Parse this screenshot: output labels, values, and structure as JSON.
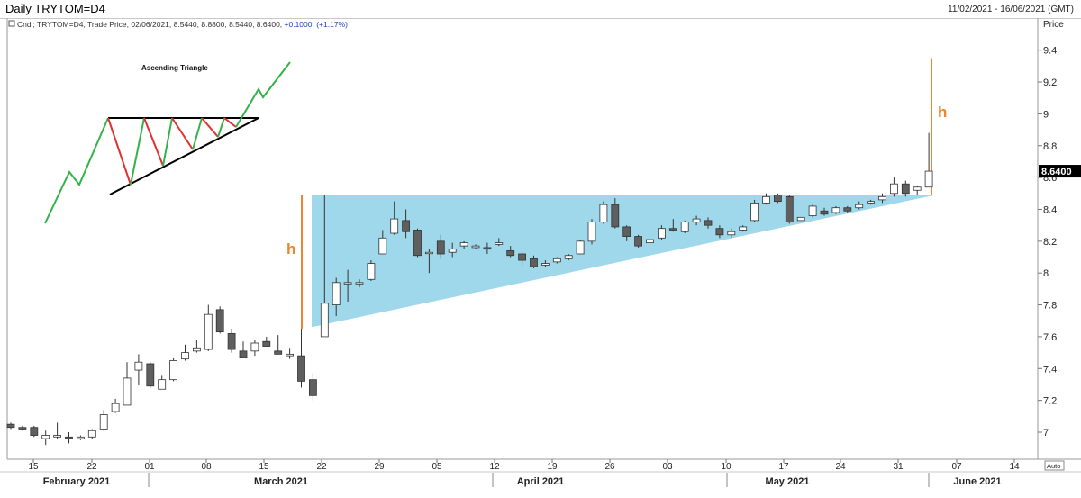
{
  "header": {
    "title": "Daily TRYTOM=D4",
    "date_range": "11/02/2021 - 16/06/2021 (GMT)"
  },
  "info_line": {
    "prefix": "Cndl; TRYTOM=D4, Trade Price, 02/06/2021, 8.5440, 8.8800, 8.5440, 8.6400,",
    "change": "+0.1000, (+1.17%)",
    "change_color": "#1f3fbf"
  },
  "price_axis": {
    "title": "Price",
    "last_price": "8.6400",
    "auto_button": "Auto"
  },
  "annotations": {
    "pattern_label": "Ascending Triangle",
    "height_label": "h",
    "accent_color": "#f0842c",
    "triangle_fill": "#9fd8ea",
    "up_color": "#ffffff",
    "down_color": "#5f5f5f"
  },
  "chart_data": {
    "type": "candlestick",
    "title": "Daily TRYTOM=D4",
    "ylabel": "Price",
    "ylim": [
      6.85,
      9.65
    ],
    "yticks": [
      "7",
      "7.2",
      "7.4",
      "7.6",
      "7.8",
      "8",
      "8.2",
      "8.4",
      "8.6",
      "8.8",
      "9",
      "9.2",
      "9.4"
    ],
    "x_day_labels": [
      "15",
      "22",
      "01",
      "08",
      "15",
      "22",
      "29",
      "05",
      "12",
      "19",
      "26",
      "03",
      "10",
      "17",
      "24",
      "31",
      "07",
      "14"
    ],
    "x_month_labels": [
      "February 2021",
      "March 2021",
      "April 2021",
      "May 2021",
      "June 2021"
    ],
    "candles": [
      {
        "o": 7.05,
        "h": 7.06,
        "l": 7.02,
        "c": 7.03
      },
      {
        "o": 7.03,
        "h": 7.04,
        "l": 7.01,
        "c": 7.02
      },
      {
        "o": 7.03,
        "h": 7.04,
        "l": 6.97,
        "c": 6.98
      },
      {
        "o": 6.96,
        "h": 7.01,
        "l": 6.92,
        "c": 6.98
      },
      {
        "o": 6.97,
        "h": 7.06,
        "l": 6.96,
        "c": 6.98
      },
      {
        "o": 6.97,
        "h": 7.0,
        "l": 6.93,
        "c": 6.96
      },
      {
        "o": 6.96,
        "h": 6.98,
        "l": 6.95,
        "c": 6.97
      },
      {
        "o": 6.97,
        "h": 7.02,
        "l": 6.96,
        "c": 7.01
      },
      {
        "o": 7.02,
        "h": 7.14,
        "l": 7.01,
        "c": 7.11
      },
      {
        "o": 7.13,
        "h": 7.21,
        "l": 7.12,
        "c": 7.18
      },
      {
        "o": 7.17,
        "h": 7.44,
        "l": 7.17,
        "c": 7.34
      },
      {
        "o": 7.39,
        "h": 7.49,
        "l": 7.3,
        "c": 7.44
      },
      {
        "o": 7.43,
        "h": 7.44,
        "l": 7.28,
        "c": 7.29
      },
      {
        "o": 7.27,
        "h": 7.36,
        "l": 7.27,
        "c": 7.33
      },
      {
        "o": 7.33,
        "h": 7.47,
        "l": 7.32,
        "c": 7.45
      },
      {
        "o": 7.46,
        "h": 7.55,
        "l": 7.45,
        "c": 7.5
      },
      {
        "o": 7.51,
        "h": 7.58,
        "l": 7.5,
        "c": 7.53
      },
      {
        "o": 7.52,
        "h": 7.8,
        "l": 7.51,
        "c": 7.74
      },
      {
        "o": 7.77,
        "h": 7.79,
        "l": 7.62,
        "c": 7.63
      },
      {
        "o": 7.62,
        "h": 7.65,
        "l": 7.5,
        "c": 7.52
      },
      {
        "o": 7.51,
        "h": 7.57,
        "l": 7.47,
        "c": 7.47
      },
      {
        "o": 7.51,
        "h": 7.58,
        "l": 7.48,
        "c": 7.56
      },
      {
        "o": 7.57,
        "h": 7.6,
        "l": 7.54,
        "c": 7.54
      },
      {
        "o": 7.51,
        "h": 7.61,
        "l": 7.5,
        "c": 7.49
      },
      {
        "o": 7.48,
        "h": 7.53,
        "l": 7.46,
        "c": 7.49
      },
      {
        "o": 7.48,
        "h": 7.65,
        "l": 7.28,
        "c": 7.32
      },
      {
        "o": 7.33,
        "h": 7.37,
        "l": 7.2,
        "c": 7.23
      },
      {
        "o": 7.6,
        "h": 8.49,
        "l": 7.6,
        "c": 7.81
      },
      {
        "o": 7.8,
        "h": 7.97,
        "l": 7.73,
        "c": 7.94
      },
      {
        "o": 7.94,
        "h": 8.02,
        "l": 7.82,
        "c": 7.94
      },
      {
        "o": 7.94,
        "h": 7.96,
        "l": 7.91,
        "c": 7.94
      },
      {
        "o": 7.96,
        "h": 8.08,
        "l": 7.95,
        "c": 8.06
      },
      {
        "o": 8.12,
        "h": 8.27,
        "l": 8.12,
        "c": 8.22
      },
      {
        "o": 8.25,
        "h": 8.45,
        "l": 8.24,
        "c": 8.34
      },
      {
        "o": 8.33,
        "h": 8.4,
        "l": 8.22,
        "c": 8.26
      },
      {
        "o": 8.27,
        "h": 8.28,
        "l": 8.1,
        "c": 8.11
      },
      {
        "o": 8.13,
        "h": 8.15,
        "l": 8.0,
        "c": 8.13
      },
      {
        "o": 8.2,
        "h": 8.24,
        "l": 8.09,
        "c": 8.12
      },
      {
        "o": 8.13,
        "h": 8.19,
        "l": 8.1,
        "c": 8.15
      },
      {
        "o": 8.17,
        "h": 8.2,
        "l": 8.15,
        "c": 8.19
      },
      {
        "o": 8.16,
        "h": 8.18,
        "l": 8.15,
        "c": 8.17
      },
      {
        "o": 8.16,
        "h": 8.19,
        "l": 8.12,
        "c": 8.15
      },
      {
        "o": 8.18,
        "h": 8.22,
        "l": 8.17,
        "c": 8.19
      },
      {
        "o": 8.14,
        "h": 8.17,
        "l": 8.1,
        "c": 8.11
      },
      {
        "o": 8.12,
        "h": 8.13,
        "l": 8.05,
        "c": 8.08
      },
      {
        "o": 8.09,
        "h": 8.11,
        "l": 8.03,
        "c": 8.04
      },
      {
        "o": 8.05,
        "h": 8.08,
        "l": 8.04,
        "c": 8.06
      },
      {
        "o": 8.07,
        "h": 8.1,
        "l": 8.06,
        "c": 8.09
      },
      {
        "o": 8.09,
        "h": 8.12,
        "l": 8.08,
        "c": 8.11
      },
      {
        "o": 8.12,
        "h": 8.21,
        "l": 8.12,
        "c": 8.2
      },
      {
        "o": 8.2,
        "h": 8.34,
        "l": 8.18,
        "c": 8.32
      },
      {
        "o": 8.32,
        "h": 8.45,
        "l": 8.31,
        "c": 8.43
      },
      {
        "o": 8.43,
        "h": 8.47,
        "l": 8.28,
        "c": 8.29
      },
      {
        "o": 8.29,
        "h": 8.3,
        "l": 8.2,
        "c": 8.23
      },
      {
        "o": 8.23,
        "h": 8.24,
        "l": 8.16,
        "c": 8.17
      },
      {
        "o": 8.19,
        "h": 8.25,
        "l": 8.13,
        "c": 8.21
      },
      {
        "o": 8.22,
        "h": 8.3,
        "l": 8.21,
        "c": 8.28
      },
      {
        "o": 8.28,
        "h": 8.34,
        "l": 8.26,
        "c": 8.27
      },
      {
        "o": 8.26,
        "h": 8.33,
        "l": 8.25,
        "c": 8.32
      },
      {
        "o": 8.32,
        "h": 8.36,
        "l": 8.3,
        "c": 8.34
      },
      {
        "o": 8.33,
        "h": 8.35,
        "l": 8.28,
        "c": 8.3
      },
      {
        "o": 8.28,
        "h": 8.3,
        "l": 8.22,
        "c": 8.24
      },
      {
        "o": 8.24,
        "h": 8.28,
        "l": 8.22,
        "c": 8.26
      },
      {
        "o": 8.27,
        "h": 8.3,
        "l": 8.26,
        "c": 8.29
      },
      {
        "o": 8.33,
        "h": 8.46,
        "l": 8.32,
        "c": 8.44
      },
      {
        "o": 8.44,
        "h": 8.5,
        "l": 8.43,
        "c": 8.48
      },
      {
        "o": 8.49,
        "h": 8.5,
        "l": 8.44,
        "c": 8.45
      },
      {
        "o": 8.48,
        "h": 8.49,
        "l": 8.31,
        "c": 8.32
      },
      {
        "o": 8.33,
        "h": 8.35,
        "l": 8.33,
        "c": 8.35
      },
      {
        "o": 8.36,
        "h": 8.43,
        "l": 8.35,
        "c": 8.42
      },
      {
        "o": 8.39,
        "h": 8.41,
        "l": 8.36,
        "c": 8.37
      },
      {
        "o": 8.38,
        "h": 8.42,
        "l": 8.37,
        "c": 8.41
      },
      {
        "o": 8.41,
        "h": 8.42,
        "l": 8.38,
        "c": 8.39
      },
      {
        "o": 8.41,
        "h": 8.45,
        "l": 8.4,
        "c": 8.43
      },
      {
        "o": 8.44,
        "h": 8.46,
        "l": 8.43,
        "c": 8.45
      },
      {
        "o": 8.46,
        "h": 8.5,
        "l": 8.44,
        "c": 8.48
      },
      {
        "o": 8.5,
        "h": 8.6,
        "l": 8.48,
        "c": 8.56
      },
      {
        "o": 8.56,
        "h": 8.58,
        "l": 8.48,
        "c": 8.5
      },
      {
        "o": 8.52,
        "h": 8.55,
        "l": 8.49,
        "c": 8.54
      },
      {
        "o": 8.54,
        "h": 8.88,
        "l": 8.54,
        "c": 8.64
      }
    ]
  }
}
